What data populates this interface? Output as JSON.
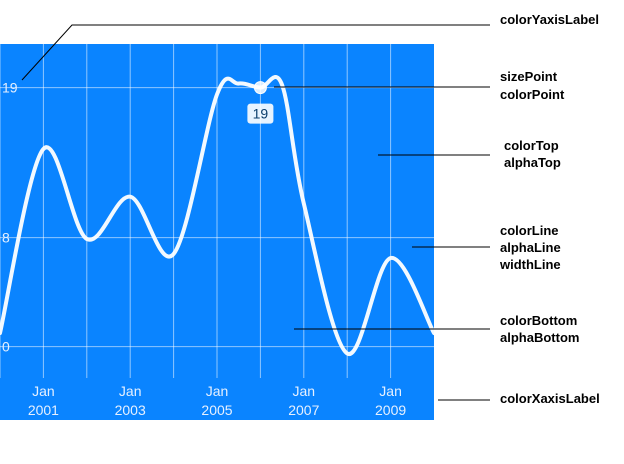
{
  "colors": {
    "plot_background": "#0a84ff",
    "grid": "#ffffff",
    "line": "#ffffff",
    "axis_label": "#e6f0ff",
    "point": "#ffffff",
    "point_badge_bg": "#ffffff",
    "point_badge_text": "#0a3d6b",
    "annotation_line": "#000000"
  },
  "annotations": {
    "y_axis_label": "colorYaxisLabel",
    "point_size": "sizePoint",
    "point_color": "colorPoint",
    "top_color": "colorTop",
    "top_alpha": "alphaTop",
    "line_color": "colorLine",
    "line_alpha": "alphaLine",
    "line_width": "widthLine",
    "bottom_color": "colorBottom",
    "bottom_alpha": "alphaBottom",
    "x_axis_label": "colorXaxisLabel"
  },
  "chart_data": {
    "type": "line",
    "title": "",
    "xlabel": "",
    "ylabel": "",
    "grid": true,
    "legend": "none",
    "y_ticks": [
      0,
      8,
      19
    ],
    "y_tick_labels": [
      "0",
      "8",
      "19"
    ],
    "ylim": [
      -2.3,
      22.2
    ],
    "xlim": [
      "2000-01",
      "2010-01"
    ],
    "x_tick_labels": [
      {
        "top": "Jan",
        "bottom": "2001"
      },
      {
        "top": "Jan",
        "bottom": "2003"
      },
      {
        "top": "Jan",
        "bottom": "2005"
      },
      {
        "top": "Jan",
        "bottom": "2007"
      },
      {
        "top": "Jan",
        "bottom": "2009"
      }
    ],
    "series": [
      {
        "x": [
          "2000-01",
          "2001-01",
          "2002-01",
          "2003-01",
          "2004-01",
          "2005-01",
          "2005-07",
          "2006-01",
          "2006-07",
          "2007-01",
          "2008-01",
          "2009-01",
          "2010-01"
        ],
        "y": [
          1,
          14.5,
          7.9,
          11,
          6.8,
          18.5,
          19.3,
          19,
          19.2,
          10.5,
          -0.5,
          6.5,
          1
        ]
      }
    ],
    "highlight": {
      "x": "2006-01",
      "y": 19,
      "label": "19"
    }
  }
}
